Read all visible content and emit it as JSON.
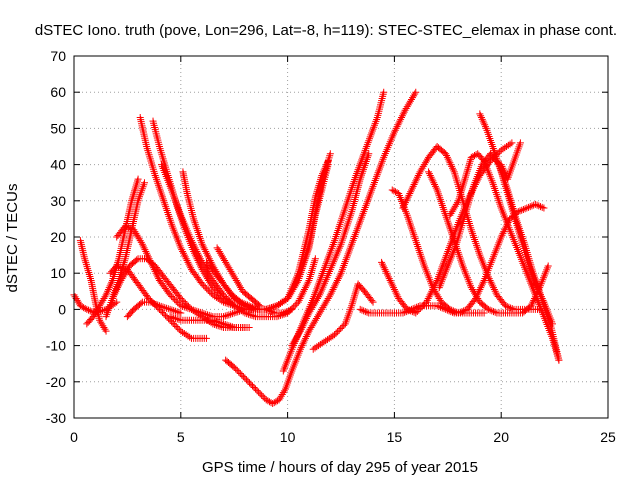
{
  "chart_data": {
    "type": "scatter",
    "title": "dSTEC Iono. truth (pove, Lon=296, Lat=-8, h=119): STEC-STEC_elemax in phase cont.",
    "xlabel": "GPS time / hours of day 295 of year 2015",
    "ylabel": "dSTEC  / TECUs",
    "xlim": [
      0,
      25
    ],
    "ylim": [
      -30,
      70
    ],
    "x_ticks": [
      0,
      5,
      10,
      15,
      20,
      25
    ],
    "y_ticks": [
      -30,
      -20,
      -10,
      0,
      10,
      20,
      30,
      40,
      50,
      60,
      70
    ],
    "grid": true,
    "marker": "plus",
    "color": "#ff0000",
    "series": [
      {
        "x": [
          0.0,
          0.3,
          0.6,
          1.0,
          1.5,
          2.0
        ],
        "y": [
          4,
          1,
          0,
          -1,
          0,
          2
        ]
      },
      {
        "x": [
          0.3,
          0.5,
          0.8,
          1.0,
          1.2,
          1.5
        ],
        "y": [
          19,
          14,
          8,
          2,
          -3,
          -6
        ]
      },
      {
        "x": [
          0.6,
          0.9,
          1.2,
          1.5,
          1.8,
          2.1,
          2.4,
          2.7,
          3.0
        ],
        "y": [
          -4,
          -2,
          1,
          4,
          8,
          14,
          22,
          30,
          36
        ]
      },
      {
        "x": [
          1.5,
          1.8,
          2.1,
          2.4,
          2.7,
          3.0,
          3.3
        ],
        "y": [
          -2,
          3,
          8,
          14,
          22,
          30,
          35
        ]
      },
      {
        "x": [
          1.7,
          2.0,
          2.5,
          3.0,
          3.5,
          4.0,
          4.5,
          5.0,
          5.5,
          6.0,
          6.2
        ],
        "y": [
          10,
          12,
          11,
          7,
          3,
          0,
          -3,
          -6,
          -8,
          -8,
          -8
        ]
      },
      {
        "x": [
          1.8,
          2.2,
          2.6,
          3.0,
          3.4,
          3.8,
          4.2,
          4.6,
          5.0,
          5.5,
          6.0,
          6.5,
          7.0,
          7.5,
          8.2
        ],
        "y": [
          3,
          8,
          12,
          14,
          14,
          12,
          9,
          6,
          3,
          0,
          -2,
          -4,
          -5,
          -5,
          -5
        ]
      },
      {
        "x": [
          2.0,
          2.4,
          2.8,
          3.2,
          3.6,
          4.0,
          4.5,
          5.0,
          5.5,
          6.0,
          6.5,
          7.0,
          7.5,
          8.0
        ],
        "y": [
          20,
          23,
          22,
          18,
          13,
          8,
          4,
          1,
          0,
          -1,
          -2,
          -2,
          -1,
          0
        ]
      },
      {
        "x": [
          2.5,
          2.8,
          3.2,
          3.6,
          4.0,
          4.5,
          5.0
        ],
        "y": [
          -2,
          0,
          2,
          2,
          1,
          0,
          -1
        ]
      },
      {
        "x": [
          3.1,
          3.4,
          3.8,
          4.2,
          4.6,
          5.0,
          5.5,
          6.0,
          6.5,
          7.0,
          7.5,
          8.0,
          8.5,
          9.0,
          9.5,
          10.0,
          10.5,
          11.0,
          11.3,
          11.6,
          11.9
        ],
        "y": [
          53,
          45,
          37,
          30,
          23,
          17,
          11,
          7,
          4,
          2,
          1,
          0,
          0,
          0,
          1,
          3,
          8,
          17,
          26,
          33,
          40
        ]
      },
      {
        "x": [
          3.7,
          4.0,
          4.4,
          4.8,
          5.2,
          5.6,
          6.0,
          6.5,
          7.0,
          7.5,
          8.0,
          8.5,
          9.0,
          9.5,
          10.0,
          10.5,
          11.0,
          11.3,
          11.6,
          12.0
        ],
        "y": [
          52,
          45,
          37,
          29,
          22,
          16,
          11,
          6,
          3,
          1,
          0,
          0,
          0,
          1,
          3,
          8,
          18,
          27,
          35,
          43
        ]
      },
      {
        "x": [
          4.1,
          4.5,
          5.0,
          5.5,
          6.0,
          6.5,
          7.0,
          7.5,
          8.0,
          8.5,
          9.0,
          9.5,
          10.0,
          10.5,
          11.0,
          11.3
        ],
        "y": [
          40,
          34,
          26,
          19,
          13,
          8,
          4,
          1,
          -1,
          -2,
          -2,
          -2,
          -1,
          2,
          8,
          14
        ]
      },
      {
        "x": [
          5.1,
          5.3,
          5.6,
          6.0,
          6.5,
          7.0,
          7.5,
          8.0,
          8.5,
          9.0,
          9.5,
          10.0,
          10.5,
          11.0,
          11.3,
          11.6,
          11.9
        ],
        "y": [
          38,
          32,
          25,
          18,
          12,
          7,
          3,
          1,
          0,
          0,
          1,
          3,
          10,
          22,
          31,
          37,
          41
        ]
      },
      {
        "x": [
          6.2,
          6.6,
          7.0,
          7.4,
          7.8,
          8.2,
          8.6,
          9.0,
          9.4,
          9.8,
          10.2
        ],
        "y": [
          13,
          10,
          7,
          4,
          2,
          1,
          0,
          0,
          -1,
          -1,
          0
        ]
      },
      {
        "x": [
          6.7,
          7.1,
          7.5,
          7.9,
          8.3,
          8.7
        ],
        "y": [
          17,
          13,
          9,
          5,
          3,
          1
        ]
      },
      {
        "x": [
          4.5,
          5.0,
          5.5,
          6.0,
          6.5,
          7.0,
          7.5,
          8.0
        ],
        "y": [
          -2,
          -3,
          -3,
          -3,
          -3,
          -4,
          -5,
          -5
        ]
      },
      {
        "x": [
          7.1,
          7.5,
          8.0,
          8.5,
          9.0,
          9.3,
          9.6,
          9.9,
          10.2,
          10.6,
          11.0,
          11.5,
          12.0,
          12.5,
          13.0,
          13.5,
          14.0,
          14.5,
          15.0,
          15.5,
          16.0
        ],
        "y": [
          -14,
          -16,
          -19,
          -22,
          -25,
          -26,
          -25,
          -22,
          -17,
          -11,
          -6,
          -1,
          4,
          10,
          18,
          26,
          34,
          42,
          49,
          55,
          60
        ]
      },
      {
        "x": [
          9.8,
          10.2,
          10.7,
          11.2,
          11.7,
          12.2,
          12.7,
          13.2,
          13.7,
          14.2,
          14.5
        ],
        "y": [
          -17,
          -11,
          -4,
          3,
          11,
          19,
          28,
          37,
          45,
          53,
          60
        ]
      },
      {
        "x": [
          10.2,
          10.6,
          11.0,
          11.5,
          12.0,
          12.5,
          13.0,
          13.4,
          13.8
        ],
        "y": [
          -10,
          -6,
          -1,
          4,
          11,
          18,
          27,
          36,
          43
        ]
      },
      {
        "x": [
          11.2,
          11.7,
          12.2,
          12.7,
          13.0,
          13.3,
          13.6,
          14.0
        ],
        "y": [
          -11,
          -9,
          -7,
          -4,
          1,
          7,
          5,
          2
        ]
      },
      {
        "x": [
          13.4,
          13.8,
          14.2,
          14.6,
          15.0,
          15.4,
          15.8,
          16.2,
          16.6,
          17.0,
          17.4,
          17.8,
          18.2,
          18.6,
          19.0,
          19.2
        ],
        "y": [
          0,
          -1,
          -1,
          -1,
          -1,
          -1,
          0,
          1,
          1,
          1,
          0,
          -1,
          -1,
          -1,
          -1,
          -1
        ]
      },
      {
        "x": [
          14.4,
          14.8,
          15.2,
          15.6,
          16.0,
          16.5,
          17.0,
          17.5,
          18.0,
          18.5,
          19.0,
          19.5,
          20.0,
          20.5
        ],
        "y": [
          13,
          8,
          3,
          0,
          -1,
          2,
          8,
          16,
          24,
          31,
          37,
          41,
          44,
          46
        ]
      },
      {
        "x": [
          14.9,
          15.2,
          15.6,
          16.0,
          16.4,
          16.8,
          17.2,
          17.6,
          18.0,
          18.4,
          18.8,
          19.2,
          19.6,
          20.0,
          20.4,
          20.8,
          21.2,
          21.6,
          22.0
        ],
        "y": [
          33,
          32,
          26,
          19,
          12,
          6,
          2,
          0,
          -1,
          0,
          3,
          8,
          14,
          20,
          25,
          27,
          28,
          29,
          28
        ]
      },
      {
        "x": [
          15.4,
          15.8,
          16.2,
          16.6,
          17.0,
          17.4,
          17.8,
          18.2,
          18.6,
          19.0,
          19.4,
          19.8,
          20.2,
          20.6,
          21.0,
          21.4,
          21.8
        ],
        "y": [
          28,
          33,
          38,
          42,
          45,
          43,
          38,
          30,
          22,
          15,
          9,
          4,
          1,
          0,
          0,
          0,
          0
        ]
      },
      {
        "x": [
          16.6,
          17.0,
          17.4,
          17.8,
          18.2,
          18.6,
          19.0,
          19.4,
          19.8,
          20.2,
          20.6,
          21.0,
          21.4,
          21.8,
          22.2
        ],
        "y": [
          38,
          33,
          26,
          19,
          12,
          6,
          2,
          0,
          -1,
          -1,
          -1,
          -1,
          1,
          6,
          12
        ]
      },
      {
        "x": [
          17.1,
          17.5,
          17.9,
          18.3,
          18.7,
          19.1,
          19.5,
          19.9,
          20.3,
          20.7,
          21.1,
          21.5,
          21.9,
          22.3,
          22.7
        ],
        "y": [
          6,
          12,
          18,
          26,
          34,
          40,
          43,
          40,
          33,
          25,
          18,
          10,
          3,
          -4,
          -14
        ]
      },
      {
        "x": [
          17.6,
          18.0,
          18.3,
          18.6,
          18.9,
          19.2,
          19.6,
          20.0,
          20.4,
          20.8,
          21.2,
          21.6,
          22.0,
          22.4,
          22.7
        ],
        "y": [
          26,
          30,
          36,
          42,
          43,
          41,
          35,
          28,
          22,
          16,
          10,
          4,
          -2,
          -8,
          -14
        ]
      },
      {
        "x": [
          19.0,
          19.3,
          19.6,
          20.0,
          20.4,
          20.8,
          21.2,
          21.6,
          22.0,
          22.4
        ],
        "y": [
          54,
          50,
          45,
          38,
          30,
          22,
          14,
          7,
          2,
          -4
        ]
      },
      {
        "x": [
          20.0,
          20.3,
          20.6,
          20.9
        ],
        "y": [
          40,
          36,
          41,
          46
        ]
      }
    ]
  }
}
